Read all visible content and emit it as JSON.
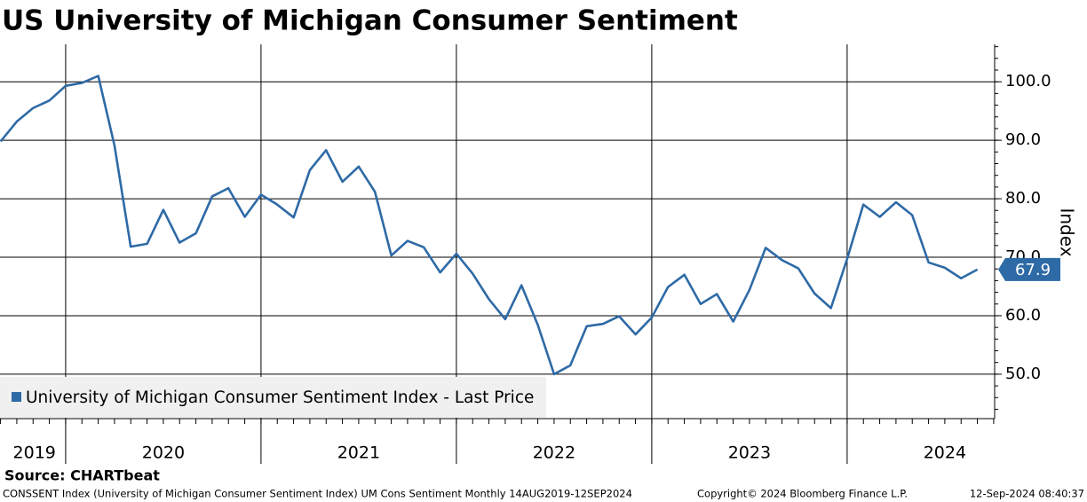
{
  "chart_data": {
    "type": "line",
    "title": "US University of Michigan Consumer Sentiment",
    "ylabel": "Index",
    "source": "Source: CHARTbeat",
    "footer_left": "CONSSENT Index (University of Michigan Consumer Sentiment Index) UM Cons Sentiment  Monthly 14AUG2019-12SEP2024",
    "footer_center": "Copyright© 2024 Bloomberg Finance L.P.",
    "footer_right": "12-Sep-2024 08:40:37",
    "xlim": [
      2019.664,
      2024.755
    ],
    "ylim": [
      42.4,
      106.4
    ],
    "xticks": [
      2020,
      2021,
      2022,
      2023,
      2024
    ],
    "x_labels": [
      {
        "value": 2019.84,
        "label": "2019"
      },
      {
        "value": 2020.5,
        "label": "2020"
      },
      {
        "value": 2021.5,
        "label": "2021"
      },
      {
        "value": 2022.5,
        "label": "2022"
      },
      {
        "value": 2023.5,
        "label": "2023"
      },
      {
        "value": 2024.5,
        "label": "2024"
      }
    ],
    "yticks": [
      {
        "value": 50,
        "label": "50.0"
      },
      {
        "value": 60,
        "label": "60.0"
      },
      {
        "value": 70,
        "label": "70.0"
      },
      {
        "value": 80,
        "label": "80.0"
      },
      {
        "value": 90,
        "label": "90.0"
      },
      {
        "value": 100,
        "label": "100.0"
      }
    ],
    "grid": true,
    "legend": "lower left",
    "x": [
      2019.667,
      2019.75,
      2019.833,
      2019.917,
      2020.0,
      2020.083,
      2020.167,
      2020.25,
      2020.333,
      2020.417,
      2020.5,
      2020.583,
      2020.667,
      2020.75,
      2020.833,
      2020.917,
      2021.0,
      2021.083,
      2021.167,
      2021.25,
      2021.333,
      2021.417,
      2021.5,
      2021.583,
      2021.667,
      2021.75,
      2021.833,
      2021.917,
      2022.0,
      2022.083,
      2022.167,
      2022.25,
      2022.333,
      2022.417,
      2022.5,
      2022.583,
      2022.667,
      2022.75,
      2022.833,
      2022.917,
      2023.0,
      2023.083,
      2023.167,
      2023.25,
      2023.333,
      2023.417,
      2023.5,
      2023.583,
      2023.667,
      2023.75,
      2023.833,
      2023.917,
      2024.0,
      2024.083,
      2024.167,
      2024.25,
      2024.333,
      2024.417,
      2024.5,
      2024.583,
      2024.667
    ],
    "series": [
      {
        "name": "University of Michigan Consumer Sentiment Index - Last Price",
        "color": "#2e6aa6",
        "values": [
          89.8,
          93.2,
          95.5,
          96.8,
          99.3,
          99.8,
          101.0,
          89.1,
          71.8,
          72.3,
          78.1,
          72.5,
          74.1,
          80.4,
          81.8,
          76.9,
          80.7,
          79.0,
          76.8,
          84.9,
          88.3,
          82.9,
          85.5,
          81.2,
          70.3,
          72.8,
          71.7,
          67.4,
          70.6,
          67.2,
          62.8,
          59.4,
          65.2,
          58.4,
          50.0,
          51.5,
          58.2,
          58.6,
          59.9,
          56.8,
          59.7,
          64.9,
          67.0,
          62.0,
          63.7,
          59.0,
          64.4,
          71.6,
          69.5,
          68.1,
          63.8,
          61.3,
          69.7,
          79.0,
          76.9,
          79.4,
          77.2,
          69.1,
          68.2,
          66.4,
          67.9
        ],
        "last_price": 67.9
      }
    ]
  }
}
